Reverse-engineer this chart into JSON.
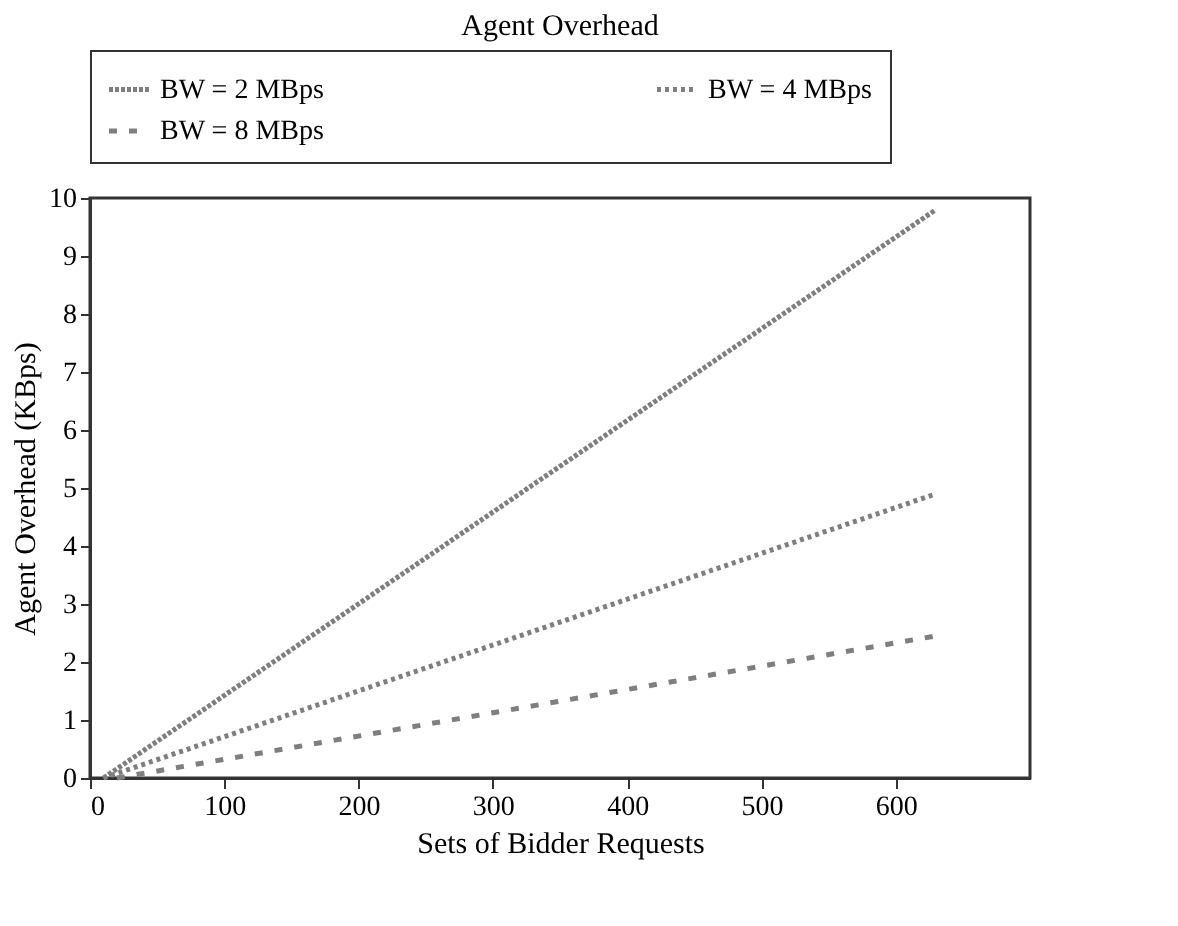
{
  "chart_data": {
    "type": "line",
    "title": "Agent Overhead",
    "xlabel": "Sets of Bidder Requests",
    "ylabel": "Agent Overhead (KBps)",
    "xlim": [
      0,
      700
    ],
    "xticks": [
      0,
      100,
      200,
      300,
      400,
      500,
      600
    ],
    "ylim": [
      0,
      10
    ],
    "yticks": [
      0,
      1,
      2,
      3,
      4,
      5,
      6,
      7,
      8,
      9,
      10
    ],
    "grid": false,
    "legend": "top",
    "marker": "none",
    "series": [
      {
        "name": "BW = 2 MBps",
        "color": "#7f7f7f",
        "line_style": "dotted",
        "x": [
          10,
          630
        ],
        "values": [
          0,
          9.8
        ]
      },
      {
        "name": "BW = 4 MBps",
        "color": "#7f7f7f",
        "line_style": "dotted",
        "x": [
          10,
          630
        ],
        "values": [
          0,
          4.9
        ]
      },
      {
        "name": "BW = 8 MBps",
        "color": "#7f7f7f",
        "line_style": "dashed",
        "x": [
          20,
          630
        ],
        "values": [
          0,
          2.45
        ]
      }
    ]
  }
}
